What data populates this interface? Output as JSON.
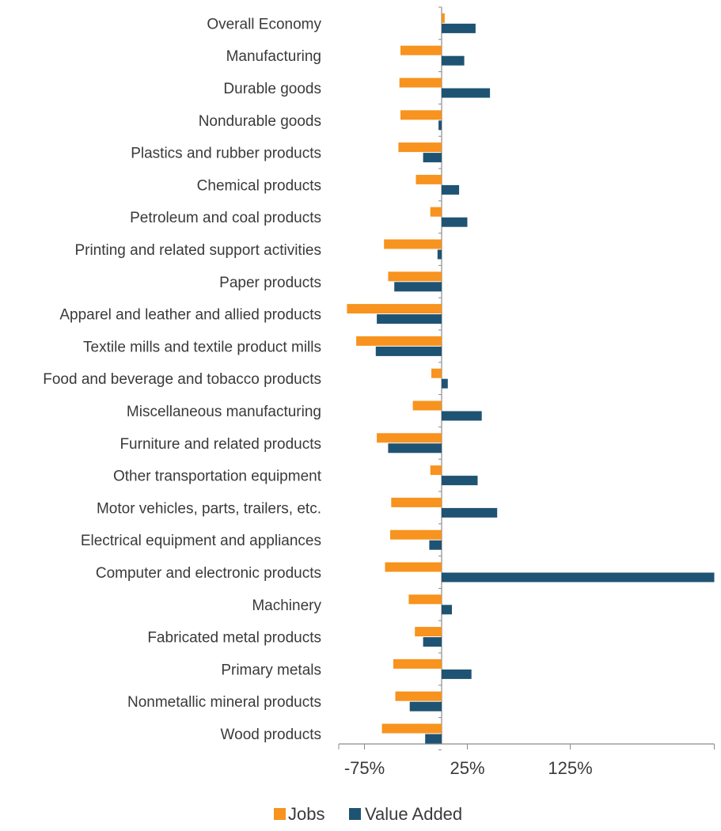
{
  "chart_data": {
    "type": "bar",
    "orientation": "horizontal",
    "categories": [
      "Overall Economy",
      "Manufacturing",
      "Durable goods",
      "Nondurable goods",
      "Plastics and rubber products",
      "Chemical products",
      "Petroleum and coal products",
      "Printing and related support activities",
      "Paper products",
      "Apparel and leather and allied products",
      "Textile mills and textile product mills",
      "Food and beverage and tobacco products",
      "Miscellaneous manufacturing",
      "Furniture and related products",
      "Other transportation equipment",
      "Motor vehicles, parts, trailers, etc.",
      "Electrical equipment and appliances",
      "Computer and electronic products",
      "Machinery",
      "Fabricated metal products",
      "Primary metals",
      "Nonmetallic mineral products",
      "Wood products"
    ],
    "series": [
      {
        "name": "Jobs",
        "color": "#F7931E",
        "values": [
          3,
          -40,
          -41,
          -40,
          -42,
          -25,
          -11,
          -56,
          -52,
          -92,
          -83,
          -10,
          -28,
          -63,
          -11,
          -49,
          -50,
          -55,
          -32,
          -26,
          -47,
          -45,
          -58
        ]
      },
      {
        "name": "Value Added",
        "color": "#1F5373",
        "values": [
          33,
          22,
          47,
          -3,
          -18,
          17,
          25,
          -4,
          -46,
          -63,
          -64,
          6,
          39,
          -52,
          35,
          54,
          -12,
          265,
          10,
          -18,
          29,
          -31,
          -16
        ]
      }
    ],
    "xticks": [
      "-75%",
      "25%",
      "125%"
    ],
    "xtick_values": [
      -75,
      25,
      125
    ],
    "xlim": [
      -100,
      265
    ],
    "legend": {
      "position": "bottom",
      "items": [
        "Jobs",
        "Value Added"
      ]
    },
    "grid": false,
    "title": "",
    "xlabel": "",
    "ylabel": ""
  }
}
